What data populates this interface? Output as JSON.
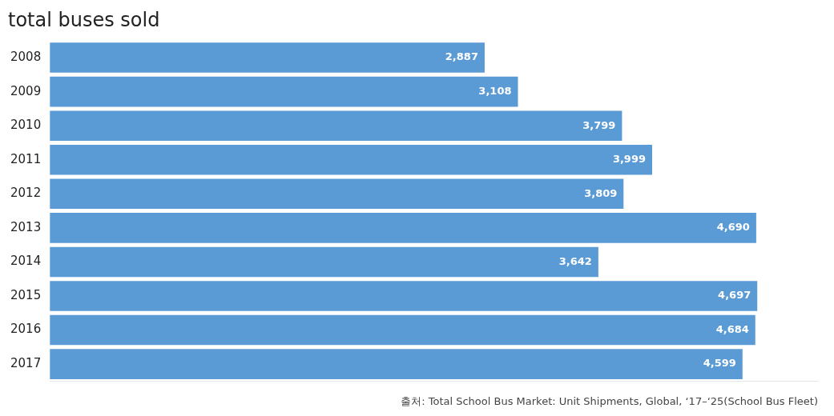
{
  "chart_data": {
    "type": "bar",
    "orientation": "horizontal",
    "title": "total buses sold",
    "caption": "출처: Total School Bus Market: Unit Shipments, Global, ‘17–‘25(School Bus Fleet)",
    "categories": [
      "2008",
      "2009",
      "2010",
      "2011",
      "2012",
      "2013",
      "2014",
      "2015",
      "2016",
      "2017"
    ],
    "values": [
      2887,
      3108,
      3799,
      3999,
      3809,
      4690,
      3642,
      4697,
      4684,
      4599
    ],
    "value_labels": [
      "2,887",
      "3,108",
      "3,799",
      "3,999",
      "3,809",
      "4,690",
      "3,642",
      "4,697",
      "4,684",
      "4,599"
    ],
    "data_labels": true,
    "color": "#5B9BD5",
    "xlim": [
      0,
      5100
    ],
    "grid": false,
    "tick_labels": "y"
  }
}
